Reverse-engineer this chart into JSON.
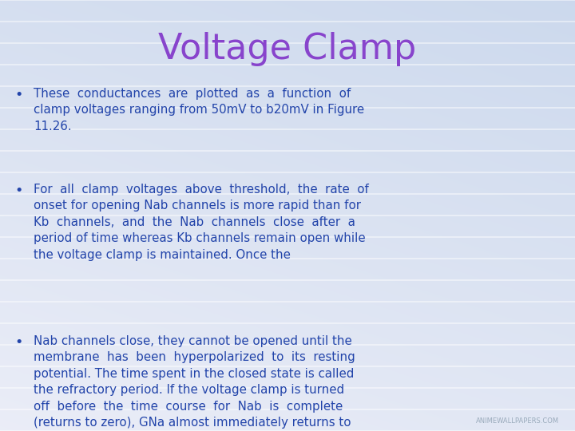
{
  "title": "Voltage Clamp",
  "title_color": "#8844CC",
  "title_fontsize": 32,
  "bg_color": "#dae8f5",
  "text_color": "#2244aa",
  "bullet_points": [
    "These  conductances  are  plotted  as  a  function  of\nclamp voltages ranging from 50mV to b20mV in Figure\n11.26.",
    "For  all  clamp  voltages  above  threshold,  the  rate  of\nonset for opening Nab channels is more rapid than for\nKb  channels,  and  the  Nab  channels  close  after  a\nperiod of time whereas Kb channels remain open while\nthe voltage clamp is maintained. Once the",
    "Nab channels close, they cannot be opened until the\nmembrane  has  been  hyperpolarized  to  its  resting\npotential. The time spent in the closed state is called\nthe refractory period. If the voltage clamp is turned\noff  before  the  time  course  for  Nab  is  complete\n(returns to zero), GNa almost immediately returns to\nzero,  and  GK  returns  to  zero  slowly  regardless  of\nwhether or not the time course for Nab is complete."
  ],
  "bullet_fontsize": 10.8,
  "watermark_text": "ANIMEWALLPAPERS.COM",
  "watermark_color": "#99aabb",
  "watermark_fontsize": 6,
  "stripe_color": "#c8dcec",
  "stripe_alpha": 0.55,
  "num_stripes": 20
}
